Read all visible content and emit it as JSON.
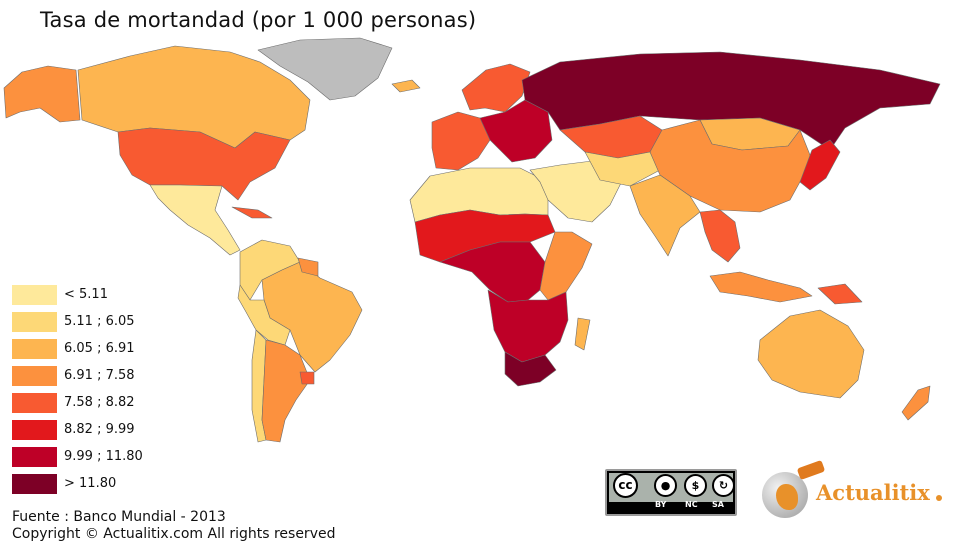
{
  "title": "Tasa de mortandad (por 1 000 personas)",
  "legend": [
    {
      "label": "< 5.11",
      "color": "#fee99b"
    },
    {
      "label": "5.11 ; 6.05",
      "color": "#fdd877"
    },
    {
      "label": "6.05 ; 6.91",
      "color": "#fdb550"
    },
    {
      "label": "6.91 ; 7.58",
      "color": "#fc913e"
    },
    {
      "label": "7.58 ; 8.82",
      "color": "#f85a31"
    },
    {
      "label": "8.82 ; 9.99",
      "color": "#e2181c"
    },
    {
      "label": "9.99 ; 11.80",
      "color": "#be0027"
    },
    {
      "label": "> 11.80",
      "color": "#7d0026"
    }
  ],
  "no_data_color": "#bdbdbd",
  "source_line": "Fuente : Banco Mundial - 2013",
  "copyright_line": "Copyright © Actualitix.com All rights reserved",
  "license": {
    "main_symbol": "cc",
    "badges": [
      "BY",
      "NC",
      "SA"
    ],
    "icons": [
      "cc-icon",
      "person-icon",
      "no-dollar-icon",
      "share-alike-icon"
    ]
  },
  "brand": {
    "name": "Actualitix",
    "icon": "globe-plug-icon"
  },
  "regions": [
    {
      "name": "Alaska / Canada west",
      "class": 4
    },
    {
      "name": "Canada",
      "class": 3
    },
    {
      "name": "Greenland",
      "class": -1
    },
    {
      "name": "United States",
      "class": 5
    },
    {
      "name": "Mexico & Central America",
      "class": 1
    },
    {
      "name": "Cuba",
      "class": 5
    },
    {
      "name": "Northern South America",
      "class": 2
    },
    {
      "name": "Brazil",
      "class": 3
    },
    {
      "name": "Guyana",
      "class": 4
    },
    {
      "name": "Peru / Bolivia",
      "class": 2
    },
    {
      "name": "Chile",
      "class": 2
    },
    {
      "name": "Argentina",
      "class": 4
    },
    {
      "name": "Uruguay",
      "class": 5
    },
    {
      "name": "Iceland",
      "class": 3
    },
    {
      "name": "Western Europe",
      "class": 5
    },
    {
      "name": "Scandinavia",
      "class": 5
    },
    {
      "name": "Eastern Europe",
      "class": 7
    },
    {
      "name": "Russia",
      "class": 8
    },
    {
      "name": "North Africa",
      "class": 1
    },
    {
      "name": "Sahel",
      "class": 6
    },
    {
      "name": "Central Africa",
      "class": 7
    },
    {
      "name": "East Africa",
      "class": 4
    },
    {
      "name": "Southern Africa",
      "class": 7
    },
    {
      "name": "South Africa",
      "class": 8
    },
    {
      "name": "Madagascar",
      "class": 3
    },
    {
      "name": "Middle East",
      "class": 1
    },
    {
      "name": "Kazakhstan",
      "class": 5
    },
    {
      "name": "Central Asia",
      "class": 2
    },
    {
      "name": "Mongolia",
      "class": 3
    },
    {
      "name": "China",
      "class": 4
    },
    {
      "name": "India",
      "class": 3
    },
    {
      "name": "Myanmar / Thailand",
      "class": 5
    },
    {
      "name": "Japan",
      "class": 6
    },
    {
      "name": "Indonesia",
      "class": 4
    },
    {
      "name": "Papua New Guinea",
      "class": 5
    },
    {
      "name": "Australia",
      "class": 3
    },
    {
      "name": "New Zealand",
      "class": 4
    }
  ]
}
